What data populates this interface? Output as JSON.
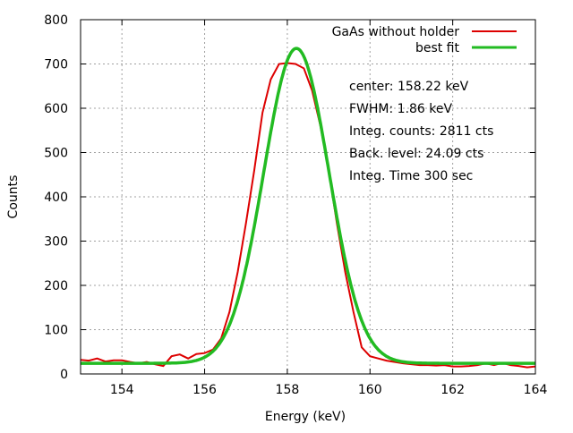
{
  "chart_data": {
    "type": "line",
    "title": "",
    "xlabel": "Energy (keV)",
    "ylabel": "Counts",
    "xlim": [
      153,
      164
    ],
    "ylim": [
      0,
      800
    ],
    "xticks": [
      154,
      156,
      158,
      160,
      162,
      164
    ],
    "yticks": [
      0,
      100,
      200,
      300,
      400,
      500,
      600,
      700,
      800
    ],
    "grid": true,
    "legend_position": "top-right",
    "series": [
      {
        "name": "GaAs without holder",
        "color": "#dd0000",
        "x": [
          153.0,
          153.2,
          153.4,
          153.6,
          153.8,
          154.0,
          154.2,
          154.4,
          154.6,
          154.8,
          155.0,
          155.2,
          155.4,
          155.6,
          155.8,
          156.0,
          156.2,
          156.4,
          156.6,
          156.8,
          157.0,
          157.2,
          157.4,
          157.6,
          157.8,
          158.0,
          158.2,
          158.4,
          158.6,
          158.8,
          159.0,
          159.2,
          159.4,
          159.6,
          159.8,
          160.0,
          160.2,
          160.4,
          160.6,
          160.8,
          161.0,
          161.2,
          161.4,
          161.6,
          161.8,
          162.0,
          162.2,
          162.4,
          162.6,
          162.8,
          163.0,
          163.2,
          163.4,
          163.6,
          163.8,
          164.0
        ],
        "y": [
          32,
          30,
          35,
          28,
          31,
          31,
          27,
          24,
          27,
          22,
          18,
          40,
          44,
          35,
          45,
          47,
          55,
          80,
          140,
          230,
          340,
          460,
          590,
          665,
          700,
          702,
          700,
          690,
          640,
          560,
          460,
          340,
          230,
          140,
          60,
          40,
          35,
          30,
          27,
          24,
          22,
          20,
          20,
          19,
          20,
          17,
          17,
          18,
          20,
          24,
          20,
          25,
          20,
          18,
          15,
          17
        ]
      },
      {
        "name": "best fit",
        "color": "#22bb22",
        "model": "gaussian",
        "center": 158.22,
        "fwhm": 1.86,
        "amplitude": 711,
        "background": 24.09
      }
    ],
    "annotations": [
      "center: 158.22 keV",
      "FWHM: 1.86 keV",
      "Integ. counts: 2811 cts",
      "Back. level: 24.09 cts",
      "Integ. Time 300 sec"
    ]
  }
}
